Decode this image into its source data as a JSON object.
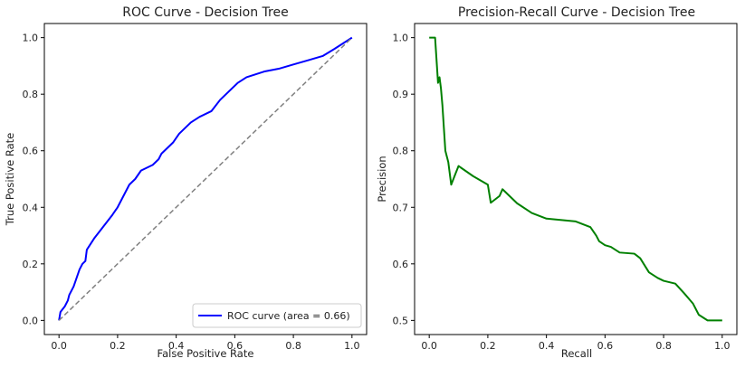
{
  "chart_data": [
    {
      "type": "line",
      "title": "ROC Curve - Decision Tree",
      "xlabel": "False Positive Rate",
      "ylabel": "True Positive Rate",
      "xlim": [
        -0.05,
        1.05
      ],
      "ylim": [
        -0.05,
        1.05
      ],
      "xticks": [
        0.0,
        0.2,
        0.4,
        0.6,
        0.8,
        1.0
      ],
      "yticks": [
        0.0,
        0.2,
        0.4,
        0.6,
        0.8,
        1.0
      ],
      "xtick_labels": [
        "0.0",
        "0.2",
        "0.4",
        "0.6",
        "0.8",
        "1.0"
      ],
      "ytick_labels": [
        "0.0",
        "0.2",
        "0.4",
        "0.6",
        "0.8",
        "1.0"
      ],
      "grid": false,
      "legend_position": "lower-right",
      "series": [
        {
          "name": "ROC curve (area = 0.66)",
          "color": "#0000ff",
          "style": "solid",
          "points": [
            [
              0.0,
              0.0
            ],
            [
              0.005,
              0.03
            ],
            [
              0.02,
              0.05
            ],
            [
              0.03,
              0.07
            ],
            [
              0.035,
              0.09
            ],
            [
              0.05,
              0.12
            ],
            [
              0.06,
              0.15
            ],
            [
              0.07,
              0.18
            ],
            [
              0.08,
              0.2
            ],
            [
              0.09,
              0.21
            ],
            [
              0.095,
              0.25
            ],
            [
              0.12,
              0.29
            ],
            [
              0.15,
              0.33
            ],
            [
              0.18,
              0.37
            ],
            [
              0.2,
              0.4
            ],
            [
              0.22,
              0.44
            ],
            [
              0.24,
              0.48
            ],
            [
              0.26,
              0.5
            ],
            [
              0.28,
              0.53
            ],
            [
              0.3,
              0.54
            ],
            [
              0.32,
              0.55
            ],
            [
              0.34,
              0.57
            ],
            [
              0.35,
              0.59
            ],
            [
              0.37,
              0.61
            ],
            [
              0.39,
              0.63
            ],
            [
              0.41,
              0.66
            ],
            [
              0.43,
              0.68
            ],
            [
              0.45,
              0.7
            ],
            [
              0.48,
              0.72
            ],
            [
              0.52,
              0.74
            ],
            [
              0.55,
              0.78
            ],
            [
              0.58,
              0.81
            ],
            [
              0.61,
              0.84
            ],
            [
              0.64,
              0.86
            ],
            [
              0.67,
              0.87
            ],
            [
              0.7,
              0.88
            ],
            [
              0.75,
              0.89
            ],
            [
              0.8,
              0.905
            ],
            [
              0.85,
              0.92
            ],
            [
              0.9,
              0.935
            ],
            [
              0.94,
              0.96
            ],
            [
              0.97,
              0.98
            ],
            [
              1.0,
              1.0
            ]
          ]
        },
        {
          "name": "",
          "color": "#808080",
          "style": "dashed",
          "points": [
            [
              0.0,
              0.0
            ],
            [
              1.0,
              1.0
            ]
          ]
        }
      ],
      "legend": {
        "entries": [
          "ROC curve (area = 0.66)"
        ]
      }
    },
    {
      "type": "line",
      "title": "Precision-Recall Curve - Decision Tree",
      "xlabel": "Recall",
      "ylabel": "Precision",
      "xlim": [
        -0.05,
        1.05
      ],
      "ylim": [
        0.475,
        1.025
      ],
      "xticks": [
        0.0,
        0.2,
        0.4,
        0.6,
        0.8,
        1.0
      ],
      "yticks": [
        0.5,
        0.6,
        0.7,
        0.8,
        0.9,
        1.0
      ],
      "xtick_labels": [
        "0.0",
        "0.2",
        "0.4",
        "0.6",
        "0.8",
        "1.0"
      ],
      "ytick_labels": [
        "0.5",
        "0.6",
        "0.7",
        "0.8",
        "0.9",
        "1.0"
      ],
      "grid": false,
      "series": [
        {
          "name": "",
          "color": "#008000",
          "style": "solid",
          "points": [
            [
              0.0,
              1.0
            ],
            [
              0.02,
              1.0
            ],
            [
              0.025,
              0.96
            ],
            [
              0.03,
              0.92
            ],
            [
              0.035,
              0.93
            ],
            [
              0.04,
              0.91
            ],
            [
              0.045,
              0.88
            ],
            [
              0.05,
              0.84
            ],
            [
              0.055,
              0.8
            ],
            [
              0.06,
              0.79
            ],
            [
              0.065,
              0.78
            ],
            [
              0.075,
              0.74
            ],
            [
              0.09,
              0.76
            ],
            [
              0.1,
              0.773
            ],
            [
              0.15,
              0.755
            ],
            [
              0.2,
              0.74
            ],
            [
              0.21,
              0.708
            ],
            [
              0.24,
              0.72
            ],
            [
              0.25,
              0.732
            ],
            [
              0.3,
              0.707
            ],
            [
              0.35,
              0.69
            ],
            [
              0.4,
              0.68
            ],
            [
              0.5,
              0.675
            ],
            [
              0.55,
              0.665
            ],
            [
              0.57,
              0.65
            ],
            [
              0.58,
              0.64
            ],
            [
              0.6,
              0.633
            ],
            [
              0.62,
              0.63
            ],
            [
              0.65,
              0.62
            ],
            [
              0.7,
              0.618
            ],
            [
              0.72,
              0.61
            ],
            [
              0.75,
              0.585
            ],
            [
              0.78,
              0.575
            ],
            [
              0.8,
              0.57
            ],
            [
              0.84,
              0.565
            ],
            [
              0.87,
              0.548
            ],
            [
              0.9,
              0.53
            ],
            [
              0.92,
              0.51
            ],
            [
              0.95,
              0.5
            ],
            [
              1.0,
              0.5
            ]
          ]
        }
      ]
    }
  ]
}
